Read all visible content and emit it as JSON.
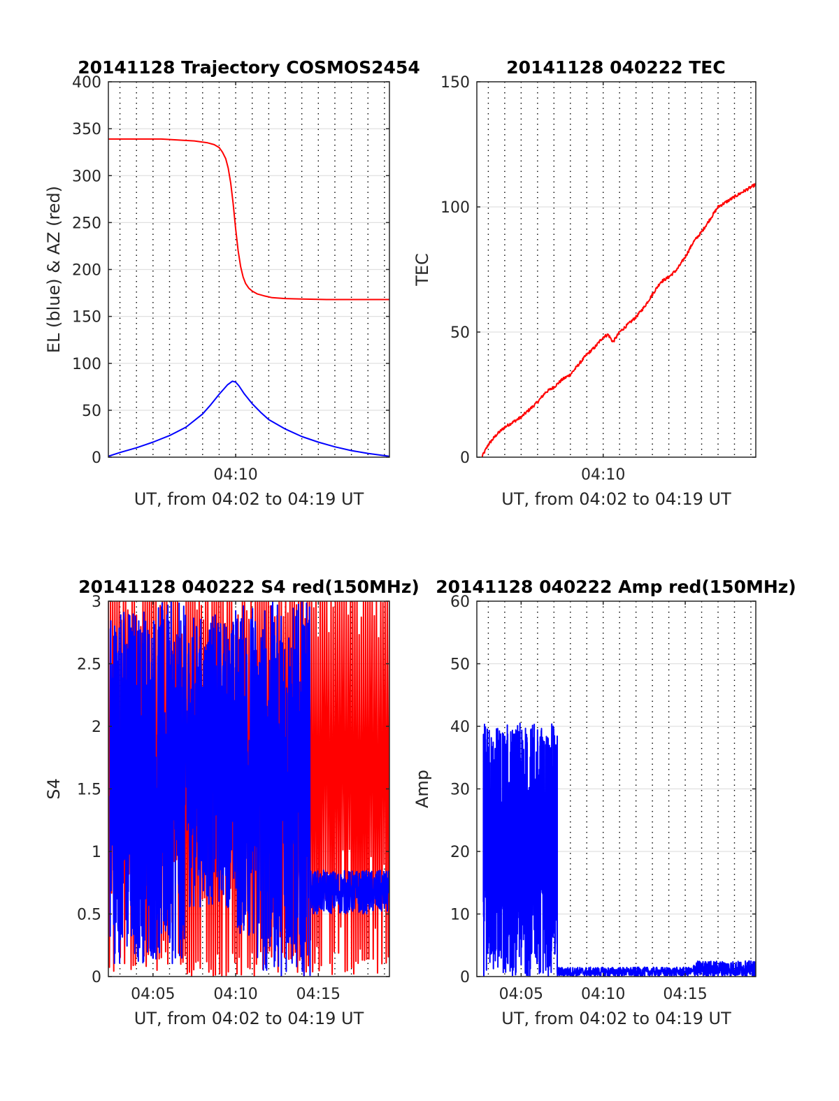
{
  "figure": {
    "background": "#ffffff",
    "colors": {
      "red": "#ff0000",
      "blue": "#0000ff",
      "grid_h": "#e0e0e0",
      "grid_v": "#000000",
      "axis": "#262626"
    }
  },
  "chart_data": [
    {
      "type": "line",
      "title": "20141128 Trajectory COSMOS2454",
      "xlabel": "UT, from 04:02 to 04:19 UT",
      "ylabel": "EL (blue) & AZ (red)",
      "xlim": [
        242.3,
        259.3
      ],
      "ylim": [
        0,
        400
      ],
      "yticks": [
        0,
        50,
        100,
        150,
        200,
        250,
        300,
        350,
        400
      ],
      "yticklabels": [
        "0",
        "50",
        "100",
        "150",
        "200",
        "250",
        "300",
        "350",
        "400"
      ],
      "xticks": [
        250
      ],
      "xticklabels": [
        "04:10"
      ],
      "vgrid_minutes": [
        243,
        244,
        245,
        246,
        247,
        248,
        249,
        250,
        251,
        252,
        253,
        254,
        255,
        256,
        257,
        258,
        259
      ],
      "grid": true,
      "series": [
        {
          "color": "#ff0000",
          "style": "smooth",
          "x": [
            242.3,
            244.0,
            245.5,
            246.5,
            247.5,
            248.3,
            248.7,
            249.0,
            249.2,
            249.4,
            249.55,
            249.7,
            249.85,
            250.0,
            250.15,
            250.3,
            250.45,
            250.6,
            250.8,
            251.0,
            251.3,
            251.7,
            252.2,
            253.0,
            254.0,
            255.5,
            257.0,
            259.3
          ],
          "values": [
            339,
            339,
            339,
            338,
            337,
            335,
            333,
            330,
            325,
            318,
            308,
            292,
            270,
            243,
            220,
            203,
            192,
            185,
            180,
            177,
            174,
            172,
            170,
            169,
            168.5,
            168,
            168,
            168
          ]
        },
        {
          "color": "#0000ff",
          "style": "smooth",
          "x": [
            242.3,
            243.0,
            244.0,
            245.0,
            246.0,
            247.0,
            248.0,
            248.5,
            249.0,
            249.5,
            249.8,
            250.0,
            250.2,
            250.5,
            251.0,
            251.5,
            252.0,
            253.0,
            254.0,
            255.0,
            256.0,
            257.0,
            258.0,
            259.3
          ],
          "values": [
            1,
            5,
            10,
            16,
            23,
            32,
            46,
            56,
            67,
            77,
            81,
            80,
            76,
            68,
            57,
            48,
            40,
            30,
            22,
            16,
            11,
            7,
            4,
            1
          ]
        }
      ]
    },
    {
      "type": "line",
      "title": "20141128 040222 TEC",
      "xlabel": "UT, from 04:02 to 04:19 UT",
      "ylabel": "TEC",
      "xlim": [
        242.3,
        259.3
      ],
      "ylim": [
        0,
        150
      ],
      "yticks": [
        0,
        50,
        100,
        150
      ],
      "yticklabels": [
        "0",
        "50",
        "100",
        "150"
      ],
      "xticks": [
        250
      ],
      "xticklabels": [
        "04:10"
      ],
      "vgrid_minutes": [
        243,
        244,
        245,
        246,
        247,
        248,
        249,
        250,
        251,
        252,
        253,
        254,
        255,
        256,
        257,
        258,
        259
      ],
      "grid": true,
      "series": [
        {
          "color": "#ff0000",
          "style": "noisy",
          "noise": 0.6,
          "x": [
            242.6,
            243.0,
            243.5,
            244.0,
            244.5,
            245.0,
            245.5,
            246.0,
            246.5,
            247.0,
            247.5,
            248.0,
            248.5,
            249.0,
            249.5,
            250.0,
            250.3,
            250.6,
            251.0,
            251.5,
            252.0,
            252.5,
            253.0,
            253.5,
            254.0,
            254.5,
            255.0,
            255.5,
            256.0,
            256.5,
            257.0,
            257.5,
            258.0,
            258.5,
            259.3
          ],
          "values": [
            0,
            5,
            9,
            12,
            14,
            16,
            19,
            22,
            26,
            28,
            31,
            33,
            37,
            41,
            44,
            48,
            49,
            46,
            50,
            53,
            56,
            60,
            65,
            70,
            72,
            75,
            80,
            86,
            90,
            95,
            100,
            102,
            104,
            106,
            109
          ]
        }
      ]
    },
    {
      "type": "line",
      "title": "20141128 040222 S4 red(150MHz)",
      "xlabel": "UT, from 04:02 to 04:19 UT",
      "ylabel": "S4",
      "xlim": [
        242.3,
        259.3
      ],
      "ylim": [
        0,
        3
      ],
      "yticks": [
        0,
        0.5,
        1,
        1.5,
        2,
        2.5,
        3
      ],
      "yticklabels": [
        "0",
        "0.5",
        "1",
        "1.5",
        "2",
        "2.5",
        "3"
      ],
      "xticks": [
        245,
        250,
        255
      ],
      "xticklabels": [
        "04:05",
        "04:10",
        "04:15"
      ],
      "vgrid_minutes": [
        243,
        244,
        245,
        246,
        247,
        248,
        249,
        250,
        251,
        252,
        253,
        254,
        255,
        256,
        257,
        258,
        259
      ],
      "grid": true,
      "series": [
        {
          "color": "#ff0000",
          "style": "spikes",
          "count": 260,
          "x": [
            242.3,
            259.3
          ],
          "min": 0,
          "max": 3
        },
        {
          "color": "#0000ff",
          "style": "noisy_segments",
          "segments": [
            {
              "x": [
                242.4,
                246.9
              ],
              "lo": 0.1,
              "hi": 3.0,
              "n": 450
            },
            {
              "x": [
                246.9,
                250.0
              ],
              "lo": 0.55,
              "hi": 2.9,
              "n": 260
            },
            {
              "x": [
                250.0,
                251.3
              ],
              "lo": 0.3,
              "hi": 3.0,
              "n": 120
            },
            {
              "x": [
                251.3,
                254.5
              ],
              "lo": 0.0,
              "hi": 3.0,
              "n": 300
            },
            {
              "x": [
                254.5,
                259.3
              ],
              "lo": 0.5,
              "hi": 0.85,
              "n": 300
            }
          ]
        }
      ]
    },
    {
      "type": "line",
      "title": "20141128 040222 Amp red(150MHz)",
      "xlabel": "UT, from 04:02 to 04:19 UT",
      "ylabel": "Amp",
      "xlim": [
        242.3,
        259.3
      ],
      "ylim": [
        0,
        60
      ],
      "yticks": [
        0,
        10,
        20,
        30,
        40,
        50,
        60
      ],
      "yticklabels": [
        "0",
        "10",
        "20",
        "30",
        "40",
        "50",
        "60"
      ],
      "xticks": [
        245,
        250,
        255
      ],
      "xticklabels": [
        "04:05",
        "04:10",
        "04:15"
      ],
      "vgrid_minutes": [
        243,
        244,
        245,
        246,
        247,
        248,
        249,
        250,
        251,
        252,
        253,
        254,
        255,
        256,
        257,
        258,
        259
      ],
      "grid": true,
      "series": [
        {
          "color": "#0000ff",
          "style": "noisy_segments",
          "segments": [
            {
              "x": [
                242.7,
                247.2
              ],
              "lo": 0.0,
              "hi": 40.5,
              "n": 700
            },
            {
              "x": [
                247.2,
                255.5
              ],
              "lo": 0.0,
              "hi": 1.5,
              "n": 500
            },
            {
              "x": [
                255.5,
                259.3
              ],
              "lo": 0.0,
              "hi": 2.5,
              "n": 300
            }
          ]
        }
      ]
    }
  ]
}
